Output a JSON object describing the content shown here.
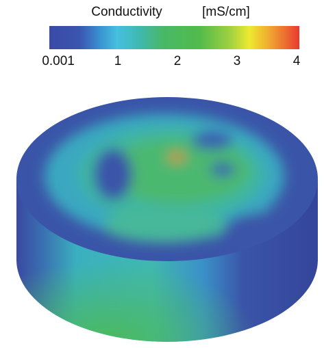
{
  "colorbar": {
    "title": "Conductivity",
    "unit": "[mS/cm]",
    "ticks": [
      0.001,
      1,
      2,
      3,
      4
    ]
  }
}
